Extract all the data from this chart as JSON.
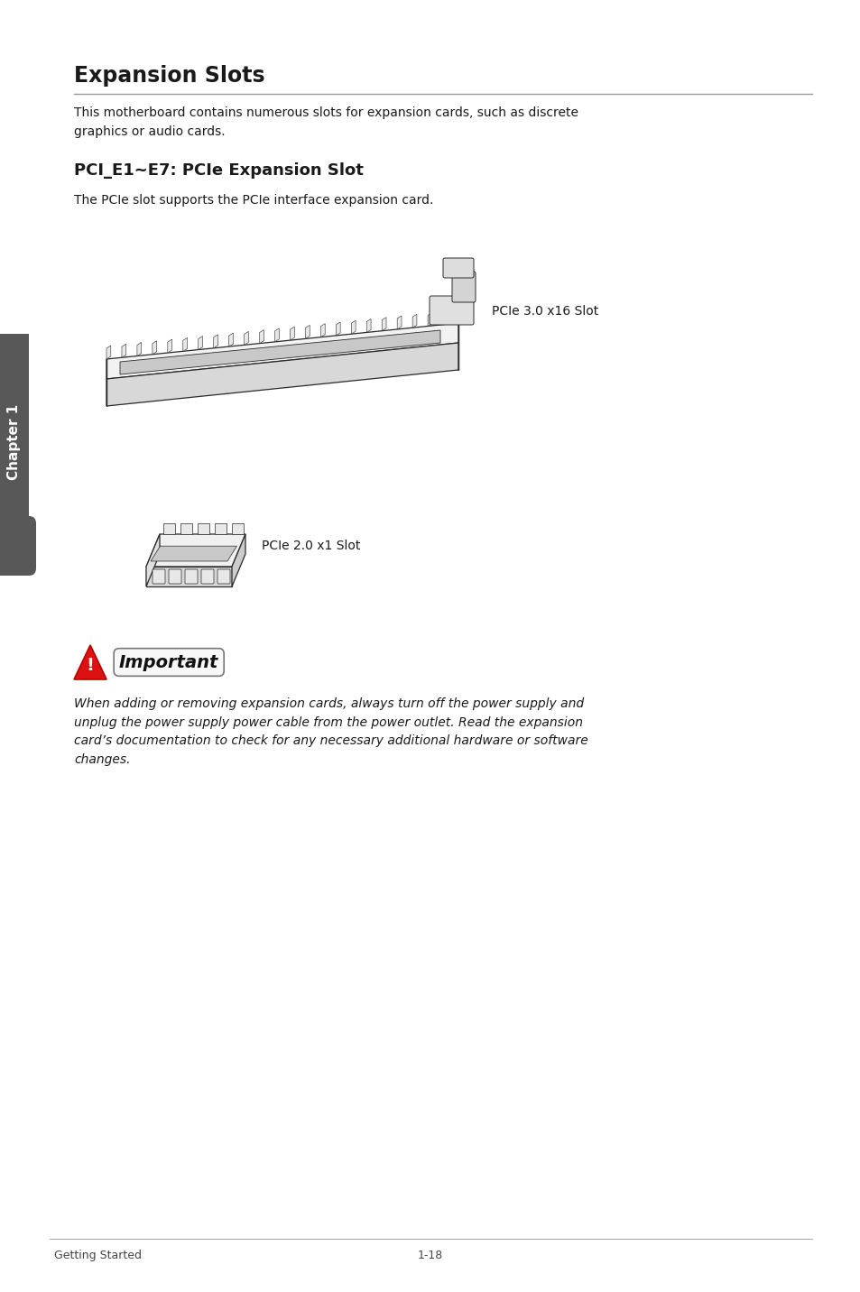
{
  "bg_color": "#ffffff",
  "page_width": 9.54,
  "page_height": 14.32,
  "sidebar_color": "#585858",
  "sidebar_text": "Chapter 1",
  "title": "Expansion Slots",
  "title_fontsize": 17,
  "body_text1": "This motherboard contains numerous slots for expansion cards, such as discrete\ngraphics or audio cards.",
  "body_fontsize": 10,
  "sub_title": "PCI_E1~E7: PCIe Expansion Slot",
  "sub_title_fontsize": 13,
  "body_text2": "The PCIe slot supports the PCIe interface expansion card.",
  "pcie16_label": "PCIe 3.0 x16 Slot",
  "pcie1_label": "PCIe 2.0 x1 Slot",
  "important_text": "When adding or removing expansion cards, always turn off the power supply and\nunplug the power supply power cable from the power outlet. Read the expansion\ncard’s documentation to check for any necessary additional hardware or software\nchanges.",
  "important_fontsize": 10,
  "footer_left": "Getting Started",
  "footer_center": "1-18",
  "footer_fontsize": 9
}
